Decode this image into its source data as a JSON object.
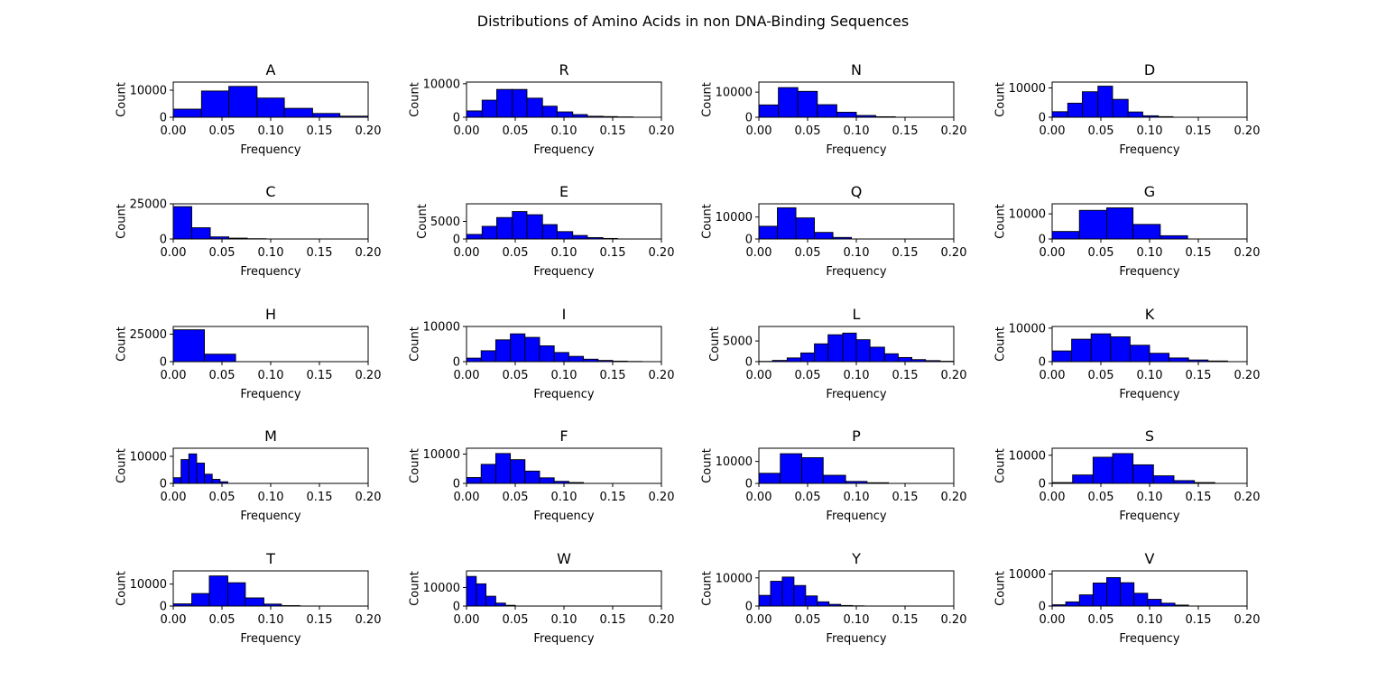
{
  "figure": {
    "title": "Distributions of Amino Acids in non DNA-Binding Sequences"
  },
  "colors": {
    "bar_fill": "#0000ff",
    "bar_edge": "#000000",
    "axis": "#000000"
  },
  "chart_data": [
    {
      "type": "bar",
      "title": "A",
      "xlabel": "Frequency",
      "ylabel": "Count",
      "xlim": [
        0,
        0.2
      ],
      "ylim": [
        0,
        13000
      ],
      "xticks": [
        "0.00",
        "0.05",
        "0.10",
        "0.15",
        "0.20"
      ],
      "yticks": [
        "0",
        "10000"
      ],
      "ytick_values": [
        0,
        10000
      ],
      "bins": [
        [
          0,
          0.029,
          3000
        ],
        [
          0.029,
          0.057,
          9700
        ],
        [
          0.057,
          0.086,
          11400
        ],
        [
          0.086,
          0.114,
          7100
        ],
        [
          0.114,
          0.143,
          3300
        ],
        [
          0.143,
          0.171,
          1400
        ],
        [
          0.171,
          0.2,
          400
        ]
      ]
    },
    {
      "type": "bar",
      "title": "R",
      "xlabel": "Frequency",
      "ylabel": "Count",
      "xlim": [
        0,
        0.2
      ],
      "ylim": [
        0,
        10500
      ],
      "xticks": [
        "0.00",
        "0.05",
        "0.10",
        "0.15",
        "0.20"
      ],
      "yticks": [
        "0",
        "10000"
      ],
      "ytick_values": [
        0,
        10000
      ],
      "bins": [
        [
          0,
          0.016,
          1900
        ],
        [
          0.016,
          0.031,
          5100
        ],
        [
          0.031,
          0.047,
          8300
        ],
        [
          0.047,
          0.062,
          8300
        ],
        [
          0.062,
          0.078,
          5700
        ],
        [
          0.078,
          0.093,
          3300
        ],
        [
          0.093,
          0.109,
          1600
        ],
        [
          0.109,
          0.124,
          800
        ],
        [
          0.124,
          0.14,
          300
        ],
        [
          0.14,
          0.155,
          200
        ],
        [
          0.155,
          0.171,
          100
        ]
      ]
    },
    {
      "type": "bar",
      "title": "N",
      "xlabel": "Frequency",
      "ylabel": "Count",
      "xlim": [
        0,
        0.2
      ],
      "ylim": [
        0,
        14000
      ],
      "xticks": [
        "0.00",
        "0.05",
        "0.10",
        "0.15",
        "0.20"
      ],
      "yticks": [
        "0",
        "10000"
      ],
      "ytick_values": [
        0,
        10000
      ],
      "bins": [
        [
          0,
          0.02,
          4900
        ],
        [
          0.02,
          0.04,
          11800
        ],
        [
          0.04,
          0.06,
          10300
        ],
        [
          0.06,
          0.08,
          5000
        ],
        [
          0.08,
          0.1,
          2000
        ],
        [
          0.1,
          0.12,
          700
        ],
        [
          0.12,
          0.14,
          200
        ]
      ]
    },
    {
      "type": "bar",
      "title": "D",
      "xlabel": "Frequency",
      "ylabel": "Count",
      "xlim": [
        0,
        0.2
      ],
      "ylim": [
        0,
        12000
      ],
      "xticks": [
        "0.00",
        "0.05",
        "0.10",
        "0.15",
        "0.20"
      ],
      "yticks": [
        "0",
        "10000"
      ],
      "ytick_values": [
        0,
        10000
      ],
      "bins": [
        [
          0,
          0.016,
          1900
        ],
        [
          0.016,
          0.031,
          4800
        ],
        [
          0.031,
          0.047,
          8700
        ],
        [
          0.047,
          0.062,
          10600
        ],
        [
          0.062,
          0.078,
          6100
        ],
        [
          0.078,
          0.093,
          1800
        ],
        [
          0.093,
          0.109,
          500
        ],
        [
          0.109,
          0.124,
          200
        ]
      ]
    },
    {
      "type": "bar",
      "title": "C",
      "xlabel": "Frequency",
      "ylabel": "Count",
      "xlim": [
        0,
        0.2
      ],
      "ylim": [
        0,
        25000
      ],
      "xticks": [
        "0.00",
        "0.05",
        "0.10",
        "0.15",
        "0.20"
      ],
      "yticks": [
        "0",
        "25000"
      ],
      "ytick_values": [
        0,
        25000
      ],
      "bins": [
        [
          0,
          0.019,
          23000
        ],
        [
          0.019,
          0.038,
          8000
        ],
        [
          0.038,
          0.057,
          1500
        ],
        [
          0.057,
          0.076,
          600
        ],
        [
          0.076,
          0.095,
          200
        ]
      ]
    },
    {
      "type": "bar",
      "title": "E",
      "xlabel": "Frequency",
      "ylabel": "Count",
      "xlim": [
        0,
        0.2
      ],
      "ylim": [
        0,
        10000
      ],
      "xticks": [
        "0.00",
        "0.05",
        "0.10",
        "0.15",
        "0.20"
      ],
      "yticks": [
        "0",
        "5000"
      ],
      "ytick_values": [
        0,
        5000
      ],
      "bins": [
        [
          0,
          0.016,
          1300
        ],
        [
          0.016,
          0.031,
          3600
        ],
        [
          0.031,
          0.047,
          6100
        ],
        [
          0.047,
          0.062,
          7800
        ],
        [
          0.062,
          0.078,
          6900
        ],
        [
          0.078,
          0.093,
          4100
        ],
        [
          0.093,
          0.109,
          2100
        ],
        [
          0.109,
          0.124,
          1000
        ],
        [
          0.124,
          0.14,
          400
        ],
        [
          0.14,
          0.155,
          150
        ]
      ]
    },
    {
      "type": "bar",
      "title": "Q",
      "xlabel": "Frequency",
      "ylabel": "Count",
      "xlim": [
        0,
        0.2
      ],
      "ylim": [
        0,
        16000
      ],
      "xticks": [
        "0.00",
        "0.05",
        "0.10",
        "0.15",
        "0.20"
      ],
      "yticks": [
        "0",
        "10000"
      ],
      "ytick_values": [
        0,
        10000
      ],
      "bins": [
        [
          0,
          0.019,
          5800
        ],
        [
          0.019,
          0.038,
          14200
        ],
        [
          0.038,
          0.057,
          9600
        ],
        [
          0.057,
          0.076,
          3000
        ],
        [
          0.076,
          0.095,
          700
        ]
      ]
    },
    {
      "type": "bar",
      "title": "G",
      "xlabel": "Frequency",
      "ylabel": "Count",
      "xlim": [
        0,
        0.2
      ],
      "ylim": [
        0,
        14000
      ],
      "xticks": [
        "0.00",
        "0.05",
        "0.10",
        "0.15",
        "0.20"
      ],
      "yticks": [
        "0",
        "10000"
      ],
      "ytick_values": [
        0,
        10000
      ],
      "bins": [
        [
          0,
          0.028,
          3000
        ],
        [
          0.028,
          0.056,
          11400
        ],
        [
          0.056,
          0.083,
          12400
        ],
        [
          0.083,
          0.111,
          5800
        ],
        [
          0.111,
          0.139,
          1300
        ]
      ]
    },
    {
      "type": "bar",
      "title": "H",
      "xlabel": "Frequency",
      "ylabel": "Count",
      "xlim": [
        0,
        0.2
      ],
      "ylim": [
        0,
        32000
      ],
      "xticks": [
        "0.00",
        "0.05",
        "0.10",
        "0.15",
        "0.20"
      ],
      "yticks": [
        "0",
        "25000"
      ],
      "ytick_values": [
        0,
        25000
      ],
      "bins": [
        [
          0,
          0.032,
          29000
        ],
        [
          0.032,
          0.064,
          6800
        ]
      ]
    },
    {
      "type": "bar",
      "title": "I",
      "xlabel": "Frequency",
      "ylabel": "Count",
      "xlim": [
        0,
        0.2
      ],
      "ylim": [
        0,
        10000
      ],
      "xticks": [
        "0.00",
        "0.05",
        "0.10",
        "0.15",
        "0.20"
      ],
      "yticks": [
        "0",
        "10000"
      ],
      "ytick_values": [
        0,
        10000
      ],
      "bins": [
        [
          0,
          0.015,
          1000
        ],
        [
          0.015,
          0.03,
          3100
        ],
        [
          0.03,
          0.045,
          6200
        ],
        [
          0.045,
          0.06,
          7900
        ],
        [
          0.06,
          0.075,
          6900
        ],
        [
          0.075,
          0.09,
          4500
        ],
        [
          0.09,
          0.105,
          2600
        ],
        [
          0.105,
          0.12,
          1500
        ],
        [
          0.12,
          0.135,
          700
        ],
        [
          0.135,
          0.15,
          350
        ],
        [
          0.15,
          0.165,
          150
        ],
        [
          0.165,
          0.18,
          60
        ]
      ]
    },
    {
      "type": "bar",
      "title": "L",
      "xlabel": "Frequency",
      "ylabel": "Count",
      "xlim": [
        0,
        0.2
      ],
      "ylim": [
        0,
        8500
      ],
      "xticks": [
        "0.00",
        "0.05",
        "0.10",
        "0.15",
        "0.20"
      ],
      "yticks": [
        "0",
        "5000"
      ],
      "ytick_values": [
        0,
        5000
      ],
      "bins": [
        [
          0,
          0.014,
          60
        ],
        [
          0.014,
          0.029,
          300
        ],
        [
          0.029,
          0.043,
          900
        ],
        [
          0.043,
          0.057,
          2100
        ],
        [
          0.057,
          0.071,
          4300
        ],
        [
          0.071,
          0.086,
          6500
        ],
        [
          0.086,
          0.1,
          6900
        ],
        [
          0.1,
          0.114,
          5300
        ],
        [
          0.114,
          0.129,
          3500
        ],
        [
          0.129,
          0.143,
          1900
        ],
        [
          0.143,
          0.157,
          1000
        ],
        [
          0.157,
          0.171,
          500
        ],
        [
          0.171,
          0.186,
          250
        ],
        [
          0.186,
          0.2,
          100
        ]
      ]
    },
    {
      "type": "bar",
      "title": "K",
      "xlabel": "Frequency",
      "ylabel": "Count",
      "xlim": [
        0,
        0.2
      ],
      "ylim": [
        0,
        10500
      ],
      "xticks": [
        "0.00",
        "0.05",
        "0.10",
        "0.15",
        "0.20"
      ],
      "yticks": [
        "0",
        "10000"
      ],
      "ytick_values": [
        0,
        10000
      ],
      "bins": [
        [
          0,
          0.02,
          3200
        ],
        [
          0.02,
          0.04,
          6700
        ],
        [
          0.04,
          0.06,
          8300
        ],
        [
          0.06,
          0.08,
          7400
        ],
        [
          0.08,
          0.1,
          4900
        ],
        [
          0.1,
          0.12,
          2500
        ],
        [
          0.12,
          0.14,
          1100
        ],
        [
          0.14,
          0.16,
          500
        ],
        [
          0.16,
          0.18,
          200
        ]
      ]
    },
    {
      "type": "bar",
      "title": "M",
      "xlabel": "Frequency",
      "ylabel": "Count",
      "xlim": [
        0,
        0.2
      ],
      "ylim": [
        0,
        13000
      ],
      "xticks": [
        "0.00",
        "0.05",
        "0.10",
        "0.15",
        "0.20"
      ],
      "yticks": [
        "0",
        "10000"
      ],
      "ytick_values": [
        0,
        10000
      ],
      "bins": [
        [
          0,
          0.008,
          2100
        ],
        [
          0.008,
          0.016,
          8800
        ],
        [
          0.016,
          0.024,
          10900
        ],
        [
          0.024,
          0.032,
          7500
        ],
        [
          0.032,
          0.04,
          3400
        ],
        [
          0.04,
          0.048,
          1500
        ],
        [
          0.048,
          0.056,
          600
        ]
      ]
    },
    {
      "type": "bar",
      "title": "F",
      "xlabel": "Frequency",
      "ylabel": "Count",
      "xlim": [
        0,
        0.2
      ],
      "ylim": [
        0,
        12000
      ],
      "xticks": [
        "0.00",
        "0.05",
        "0.10",
        "0.15",
        "0.20"
      ],
      "yticks": [
        "0",
        "10000"
      ],
      "ytick_values": [
        0,
        10000
      ],
      "bins": [
        [
          0,
          0.015,
          2000
        ],
        [
          0.015,
          0.03,
          6500
        ],
        [
          0.03,
          0.045,
          10200
        ],
        [
          0.045,
          0.06,
          8100
        ],
        [
          0.06,
          0.075,
          4200
        ],
        [
          0.075,
          0.09,
          1900
        ],
        [
          0.09,
          0.105,
          700
        ],
        [
          0.105,
          0.12,
          300
        ]
      ]
    },
    {
      "type": "bar",
      "title": "P",
      "xlabel": "Frequency",
      "ylabel": "Count",
      "xlim": [
        0,
        0.2
      ],
      "ylim": [
        0,
        16000
      ],
      "xticks": [
        "0.00",
        "0.05",
        "0.10",
        "0.15",
        "0.20"
      ],
      "yticks": [
        "0",
        "10000"
      ],
      "ytick_values": [
        0,
        10000
      ],
      "bins": [
        [
          0,
          0.022,
          4600
        ],
        [
          0.022,
          0.044,
          13500
        ],
        [
          0.044,
          0.066,
          11700
        ],
        [
          0.066,
          0.089,
          3700
        ],
        [
          0.089,
          0.111,
          900
        ],
        [
          0.111,
          0.133,
          300
        ]
      ]
    },
    {
      "type": "bar",
      "title": "S",
      "xlabel": "Frequency",
      "ylabel": "Count",
      "xlim": [
        0,
        0.2
      ],
      "ylim": [
        0,
        12500
      ],
      "xticks": [
        "0.00",
        "0.05",
        "0.10",
        "0.15",
        "0.20"
      ],
      "yticks": [
        "0",
        "10000"
      ],
      "ytick_values": [
        0,
        10000
      ],
      "bins": [
        [
          0,
          0.021,
          300
        ],
        [
          0.021,
          0.042,
          3000
        ],
        [
          0.042,
          0.062,
          9300
        ],
        [
          0.062,
          0.083,
          10600
        ],
        [
          0.083,
          0.104,
          6600
        ],
        [
          0.104,
          0.125,
          2700
        ],
        [
          0.125,
          0.146,
          1000
        ],
        [
          0.146,
          0.167,
          300
        ]
      ]
    },
    {
      "type": "bar",
      "title": "T",
      "xlabel": "Frequency",
      "ylabel": "Count",
      "xlim": [
        0,
        0.2
      ],
      "ylim": [
        0,
        16000
      ],
      "xticks": [
        "0.00",
        "0.05",
        "0.10",
        "0.15",
        "0.20"
      ],
      "yticks": [
        "0",
        "10000"
      ],
      "ytick_values": [
        0,
        10000
      ],
      "bins": [
        [
          0,
          0.019,
          1000
        ],
        [
          0.019,
          0.037,
          5700
        ],
        [
          0.037,
          0.056,
          13700
        ],
        [
          0.056,
          0.074,
          10600
        ],
        [
          0.074,
          0.093,
          3700
        ],
        [
          0.093,
          0.111,
          900
        ],
        [
          0.111,
          0.13,
          200
        ]
      ]
    },
    {
      "type": "bar",
      "title": "W",
      "xlabel": "Frequency",
      "ylabel": "Count",
      "xlim": [
        0,
        0.2
      ],
      "ylim": [
        0,
        19000
      ],
      "xticks": [
        "0.00",
        "0.05",
        "0.10",
        "0.15",
        "0.20"
      ],
      "yticks": [
        "0",
        "10000"
      ],
      "ytick_values": [
        0,
        10000
      ],
      "bins": [
        [
          0,
          0.01,
          16000
        ],
        [
          0.01,
          0.02,
          12000
        ],
        [
          0.02,
          0.03,
          5300
        ],
        [
          0.03,
          0.04,
          1600
        ],
        [
          0.04,
          0.05,
          400
        ]
      ]
    },
    {
      "type": "bar",
      "title": "Y",
      "xlabel": "Frequency",
      "ylabel": "Count",
      "xlim": [
        0,
        0.2
      ],
      "ylim": [
        0,
        12500
      ],
      "xticks": [
        "0.00",
        "0.05",
        "0.10",
        "0.15",
        "0.20"
      ],
      "yticks": [
        "0",
        "10000"
      ],
      "ytick_values": [
        0,
        10000
      ],
      "bins": [
        [
          0,
          0.012,
          3800
        ],
        [
          0.012,
          0.024,
          8800
        ],
        [
          0.024,
          0.036,
          10300
        ],
        [
          0.036,
          0.048,
          7300
        ],
        [
          0.048,
          0.06,
          3600
        ],
        [
          0.06,
          0.072,
          1500
        ],
        [
          0.072,
          0.084,
          600
        ],
        [
          0.084,
          0.096,
          200
        ],
        [
          0.096,
          0.108,
          80
        ]
      ]
    },
    {
      "type": "bar",
      "title": "V",
      "xlabel": "Frequency",
      "ylabel": "Count",
      "xlim": [
        0,
        0.2
      ],
      "ylim": [
        0,
        11000
      ],
      "xticks": [
        "0.00",
        "0.05",
        "0.10",
        "0.15",
        "0.20"
      ],
      "yticks": [
        "0",
        "10000"
      ],
      "ytick_values": [
        0,
        10000
      ],
      "bins": [
        [
          0,
          0.014,
          400
        ],
        [
          0.014,
          0.028,
          1300
        ],
        [
          0.028,
          0.042,
          3500
        ],
        [
          0.042,
          0.056,
          7200
        ],
        [
          0.056,
          0.07,
          8900
        ],
        [
          0.07,
          0.084,
          7300
        ],
        [
          0.084,
          0.098,
          4000
        ],
        [
          0.098,
          0.112,
          2100
        ],
        [
          0.112,
          0.126,
          900
        ],
        [
          0.126,
          0.14,
          300
        ]
      ]
    }
  ]
}
